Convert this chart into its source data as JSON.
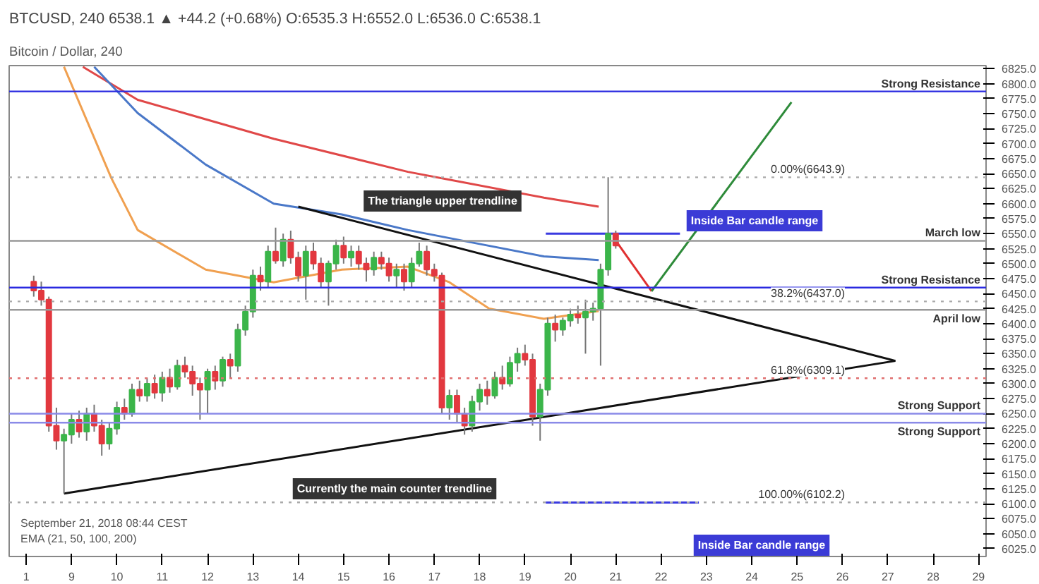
{
  "chart_data": {
    "type": "candlestick",
    "title": "BTCUSD, 240 6538.1 ▲ +44.2 (+0.68%) O:6535.3 H:6552.0 L:6536.0 C:6538.1",
    "subtitle": "Bitcoin / Dollar, 240",
    "x": [
      "2018-09-08T04:00",
      "2018-09-08T08:00",
      "2018-09-08T12:00",
      "2018-09-08T16:00",
      "2018-09-08T20:00",
      "2018-09-09T00:00",
      "2018-09-09T04:00",
      "2018-09-09T08:00",
      "2018-09-09T12:00",
      "2018-09-09T16:00",
      "2018-09-09T20:00",
      "2018-09-10T00:00",
      "2018-09-10T04:00",
      "2018-09-10T08:00",
      "2018-09-10T12:00",
      "2018-09-10T16:00",
      "2018-09-10T20:00",
      "2018-09-11T00:00",
      "2018-09-11T04:00",
      "2018-09-11T08:00",
      "2018-09-11T12:00",
      "2018-09-11T16:00",
      "2018-09-11T20:00",
      "2018-09-12T00:00",
      "2018-09-12T04:00",
      "2018-09-12T08:00",
      "2018-09-12T12:00",
      "2018-09-12T16:00",
      "2018-09-12T20:00",
      "2018-09-13T00:00",
      "2018-09-13T04:00",
      "2018-09-13T08:00",
      "2018-09-13T12:00",
      "2018-09-13T16:00",
      "2018-09-13T20:00",
      "2018-09-14T00:00",
      "2018-09-14T04:00",
      "2018-09-14T08:00",
      "2018-09-14T12:00",
      "2018-09-14T16:00",
      "2018-09-14T20:00",
      "2018-09-15T00:00",
      "2018-09-15T04:00",
      "2018-09-15T08:00",
      "2018-09-15T12:00",
      "2018-09-15T16:00",
      "2018-09-15T20:00",
      "2018-09-16T00:00",
      "2018-09-16T04:00",
      "2018-09-16T08:00",
      "2018-09-16T12:00",
      "2018-09-16T16:00",
      "2018-09-16T20:00",
      "2018-09-17T00:00",
      "2018-09-17T04:00",
      "2018-09-17T08:00",
      "2018-09-17T12:00",
      "2018-09-17T16:00",
      "2018-09-17T20:00",
      "2018-09-18T00:00",
      "2018-09-18T04:00",
      "2018-09-18T08:00",
      "2018-09-18T12:00",
      "2018-09-18T16:00",
      "2018-09-18T20:00",
      "2018-09-19T00:00",
      "2018-09-19T04:00",
      "2018-09-19T08:00",
      "2018-09-19T12:00",
      "2018-09-19T16:00",
      "2018-09-19T20:00",
      "2018-09-20T00:00",
      "2018-09-20T04:00",
      "2018-09-20T08:00",
      "2018-09-20T12:00",
      "2018-09-20T16:00",
      "2018-09-20T20:00",
      "2018-09-21T00:00"
    ],
    "ohlc": [
      [
        6470,
        6480,
        6445,
        6455
      ],
      [
        6455,
        6470,
        6430,
        6440
      ],
      [
        6440,
        6445,
        6220,
        6230
      ],
      [
        6230,
        6260,
        6190,
        6205
      ],
      [
        6205,
        6225,
        6117,
        6215
      ],
      [
        6215,
        6250,
        6200,
        6240
      ],
      [
        6240,
        6255,
        6210,
        6220
      ],
      [
        6220,
        6260,
        6205,
        6250
      ],
      [
        6250,
        6265,
        6220,
        6230
      ],
      [
        6230,
        6240,
        6180,
        6200
      ],
      [
        6200,
        6235,
        6190,
        6225
      ],
      [
        6225,
        6270,
        6215,
        6260
      ],
      [
        6260,
        6275,
        6240,
        6250
      ],
      [
        6250,
        6300,
        6245,
        6290
      ],
      [
        6290,
        6305,
        6270,
        6280
      ],
      [
        6280,
        6310,
        6270,
        6300
      ],
      [
        6300,
        6315,
        6275,
        6285
      ],
      [
        6285,
        6320,
        6270,
        6310
      ],
      [
        6310,
        6325,
        6285,
        6295
      ],
      [
        6295,
        6340,
        6290,
        6330
      ],
      [
        6330,
        6345,
        6310,
        6320
      ],
      [
        6320,
        6330,
        6280,
        6300
      ],
      [
        6300,
        6310,
        6240,
        6290
      ],
      [
        6290,
        6325,
        6250,
        6320
      ],
      [
        6320,
        6330,
        6290,
        6305
      ],
      [
        6305,
        6345,
        6295,
        6340
      ],
      [
        6340,
        6350,
        6310,
        6330
      ],
      [
        6330,
        6400,
        6320,
        6390
      ],
      [
        6390,
        6430,
        6380,
        6420
      ],
      [
        6420,
        6490,
        6410,
        6480
      ],
      [
        6480,
        6495,
        6455,
        6470
      ],
      [
        6470,
        6530,
        6460,
        6520
      ],
      [
        6520,
        6560,
        6500,
        6505
      ],
      [
        6505,
        6550,
        6495,
        6540
      ],
      [
        6540,
        6555,
        6500,
        6510
      ],
      [
        6510,
        6520,
        6470,
        6480
      ],
      [
        6480,
        6530,
        6440,
        6520
      ],
      [
        6520,
        6535,
        6490,
        6500
      ],
      [
        6500,
        6510,
        6460,
        6470
      ],
      [
        6470,
        6505,
        6430,
        6500
      ],
      [
        6500,
        6540,
        6490,
        6530
      ],
      [
        6530,
        6545,
        6500,
        6510
      ],
      [
        6510,
        6530,
        6495,
        6520
      ],
      [
        6520,
        6530,
        6490,
        6500
      ],
      [
        6500,
        6510,
        6470,
        6490
      ],
      [
        6490,
        6520,
        6480,
        6510
      ],
      [
        6510,
        6520,
        6490,
        6500
      ],
      [
        6500,
        6510,
        6470,
        6480
      ],
      [
        6480,
        6500,
        6460,
        6490
      ],
      [
        6490,
        6500,
        6455,
        6470
      ],
      [
        6470,
        6510,
        6460,
        6500
      ],
      [
        6500,
        6535,
        6495,
        6520
      ],
      [
        6520,
        6530,
        6480,
        6490
      ],
      [
        6490,
        6500,
        6470,
        6480
      ],
      [
        6480,
        6485,
        6250,
        6260
      ],
      [
        6260,
        6290,
        6240,
        6280
      ],
      [
        6280,
        6290,
        6235,
        6250
      ],
      [
        6250,
        6260,
        6215,
        6230
      ],
      [
        6230,
        6280,
        6220,
        6270
      ],
      [
        6270,
        6300,
        6255,
        6290
      ],
      [
        6290,
        6305,
        6265,
        6280
      ],
      [
        6280,
        6320,
        6275,
        6310
      ],
      [
        6310,
        6330,
        6290,
        6300
      ],
      [
        6300,
        6345,
        6295,
        6335
      ],
      [
        6335,
        6360,
        6320,
        6350
      ],
      [
        6350,
        6365,
        6330,
        6340
      ],
      [
        6340,
        6350,
        6230,
        6245
      ],
      [
        6245,
        6300,
        6205,
        6290
      ],
      [
        6290,
        6410,
        6280,
        6400
      ],
      [
        6400,
        6415,
        6370,
        6390
      ],
      [
        6390,
        6410,
        6380,
        6405
      ],
      [
        6405,
        6425,
        6395,
        6415
      ],
      [
        6415,
        6430,
        6400,
        6410
      ],
      [
        6410,
        6440,
        6350,
        6420
      ],
      [
        6420,
        6435,
        6405,
        6425
      ],
      [
        6425,
        6500,
        6330,
        6490
      ],
      [
        6490,
        6644,
        6480,
        6550
      ],
      [
        6550,
        6555,
        6525,
        6530
      ]
    ],
    "colors": [
      "#e2383f",
      "#e2383f",
      "#e2383f",
      "#e2383f",
      "#3bb54a",
      "#3bb54a",
      "#e2383f",
      "#3bb54a",
      "#e2383f",
      "#e2383f",
      "#3bb54a",
      "#3bb54a",
      "#e2383f",
      "#3bb54a",
      "#e2383f",
      "#3bb54a",
      "#e2383f",
      "#3bb54a",
      "#e2383f",
      "#3bb54a",
      "#e2383f",
      "#e2383f",
      "#e2383f",
      "#3bb54a",
      "#e2383f",
      "#3bb54a",
      "#e2383f",
      "#3bb54a",
      "#3bb54a",
      "#3bb54a",
      "#e2383f",
      "#3bb54a",
      "#e2383f",
      "#3bb54a",
      "#e2383f",
      "#e2383f",
      "#3bb54a",
      "#e2383f",
      "#e2383f",
      "#3bb54a",
      "#3bb54a",
      "#e2383f",
      "#3bb54a",
      "#e2383f",
      "#e2383f",
      "#3bb54a",
      "#e2383f",
      "#e2383f",
      "#3bb54a",
      "#e2383f",
      "#3bb54a",
      "#3bb54a",
      "#e2383f",
      "#e2383f",
      "#e2383f",
      "#3bb54a",
      "#e2383f",
      "#e2383f",
      "#3bb54a",
      "#3bb54a",
      "#e2383f",
      "#3bb54a",
      "#e2383f",
      "#3bb54a",
      "#3bb54a",
      "#e2383f",
      "#e2383f",
      "#3bb54a",
      "#3bb54a",
      "#e2383f",
      "#3bb54a",
      "#3bb54a",
      "#e2383f",
      "#3bb54a",
      "#3bb54a",
      "#3bb54a",
      "#3bb54a",
      "#e2383f"
    ],
    "series": [
      {
        "type": "line",
        "color": "#e04848",
        "x": [
          "2018-09-09T06:00",
          "2018-09-10T11:00",
          "2018-09-13T11:00",
          "2018-09-16T10:00",
          "2018-09-19T10:00",
          "2018-09-20T15:00"
        ],
        "values": [
          6828,
          6773,
          6708,
          6653,
          6610,
          6595
        ]
      },
      {
        "type": "line",
        "color": "#4a78c8",
        "x": [
          "2018-09-09T12:00",
          "2018-09-10T11:00",
          "2018-09-11T23:00",
          "2018-09-13T11:00",
          "2018-09-14T23:00",
          "2018-09-16T10:00",
          "2018-09-17T22:00",
          "2018-09-19T10:00",
          "2018-09-20T15:00"
        ],
        "values": [
          6828,
          6751,
          6665,
          6600,
          6582,
          6556,
          6534,
          6512,
          6506
        ]
      },
      {
        "type": "line",
        "color": "#f0a050",
        "x": [
          "2018-09-08T20:00",
          "2018-09-09T21:00",
          "2018-09-10T11:00",
          "2018-09-11T23:00",
          "2018-09-13T11:00",
          "2018-09-14T23:00",
          "2018-09-16T10:00",
          "2018-09-17T08:00",
          "2018-09-18T05:00",
          "2018-09-19T10:00",
          "2018-09-20T15:00"
        ],
        "values": [
          6828,
          6643,
          6556,
          6490,
          6469,
          6490,
          6495,
          6469,
          6425,
          6408,
          6421
        ]
      },
      {
        "type": "line",
        "color": "#111111",
        "x": [
          "2018-09-14T00:00",
          "2018-09-27T04:00"
        ],
        "values": [
          6595,
          6338
        ]
      },
      {
        "type": "line",
        "color": "#111111",
        "x": [
          "2018-09-08T20:00",
          "2018-09-27T04:00"
        ],
        "values": [
          6117,
          6338
        ]
      },
      {
        "type": "line",
        "color": "#e03030",
        "x": [
          "2018-09-21T01:00",
          "2018-09-21T19:00"
        ],
        "values": [
          6534,
          6454
        ]
      },
      {
        "type": "line",
        "color": "#2e8b3a",
        "x": [
          "2018-09-21T19:00",
          "2018-09-24T21:00"
        ],
        "values": [
          6454,
          6769
        ]
      },
      {
        "type": "line",
        "color": "#3a3ae0",
        "x": [
          "2018-09-19T11:00",
          "2018-09-22T10:00"
        ],
        "values": [
          6550,
          6550
        ]
      },
      {
        "type": "line",
        "color": "#3a3ae0",
        "x": [
          "2018-09-19T11:00",
          "2018-09-22T20:00"
        ],
        "values": [
          6102,
          6102
        ]
      }
    ],
    "ref_lines": [
      {
        "axis": "y",
        "value": 6787,
        "label": "Strong Resistance",
        "color": "#2a2ae0",
        "line_style": "solid"
      },
      {
        "axis": "y",
        "value": 6538,
        "label": "March low",
        "color": "#999999",
        "line_style": "solid"
      },
      {
        "axis": "y",
        "value": 6460,
        "label": "Strong Resistance",
        "color": "#2a2ae0",
        "line_style": "solid"
      },
      {
        "axis": "y",
        "value": 6423,
        "label": "April low",
        "color": "#999999",
        "line_style": "solid"
      },
      {
        "axis": "y",
        "value": 6250,
        "label": "Strong Support",
        "color": "#8a8ae8",
        "line_style": "solid"
      },
      {
        "axis": "y",
        "value": 6235,
        "label": "Strong Support",
        "color": "#8a8ae8",
        "line_style": "solid"
      },
      {
        "axis": "y",
        "value": 6643.9,
        "label": "0.00%(6643.9)",
        "color": "#aaaaaa",
        "line_style": "dotted"
      },
      {
        "axis": "y",
        "value": 6437.0,
        "label": "38.2%(6437.0)",
        "color": "#aaaaaa",
        "line_style": "dotted"
      },
      {
        "axis": "y",
        "value": 6309.1,
        "label": "61.8%(6309.1)",
        "color": "#e07070",
        "line_style": "dotted"
      },
      {
        "axis": "y",
        "value": 6102.2,
        "label": "100.00%(6102.2)",
        "color": "#aaaaaa",
        "line_style": "dotted"
      }
    ],
    "annotations": [
      "September 21, 2018 08:44 CEST",
      "EMA (21, 50, 100, 200)",
      "The triangle upper trendline",
      "Currently the main counter trendline",
      "Inside Bar candle range",
      "Inside Bar candle range"
    ],
    "xlim": [
      "2018-09-07T15:00",
      "2018-09-29T04:00"
    ],
    "xticks": [
      {
        "value": "2018-09-08",
        "label": "1"
      },
      {
        "value": "2018-09-09",
        "label": "9"
      },
      {
        "value": "2018-09-10",
        "label": "10"
      },
      {
        "value": "2018-09-11",
        "label": "11"
      },
      {
        "value": "2018-09-12",
        "label": "12"
      },
      {
        "value": "2018-09-13",
        "label": "13"
      },
      {
        "value": "2018-09-14",
        "label": "14"
      },
      {
        "value": "2018-09-15",
        "label": "15"
      },
      {
        "value": "2018-09-16",
        "label": "16"
      },
      {
        "value": "2018-09-17",
        "label": "17"
      },
      {
        "value": "2018-09-18",
        "label": "18"
      },
      {
        "value": "2018-09-19",
        "label": "19"
      },
      {
        "value": "2018-09-20",
        "label": "20"
      },
      {
        "value": "2018-09-21",
        "label": "21"
      },
      {
        "value": "2018-09-22",
        "label": "22"
      },
      {
        "value": "2018-09-23",
        "label": "23"
      },
      {
        "value": "2018-09-24",
        "label": "24"
      },
      {
        "value": "2018-09-25",
        "label": "25"
      },
      {
        "value": "2018-09-26",
        "label": "26"
      },
      {
        "value": "2018-09-27",
        "label": "27"
      },
      {
        "value": "2018-09-28",
        "label": "28"
      },
      {
        "value": "2018-09-29",
        "label": "29"
      }
    ],
    "ylim": [
      6012,
      6830
    ],
    "yticks": [
      {
        "value": 6025,
        "label": "6025.0"
      },
      {
        "value": 6050,
        "label": "6050.0"
      },
      {
        "value": 6075,
        "label": "6075.0"
      },
      {
        "value": 6100,
        "label": "6100.0"
      },
      {
        "value": 6125,
        "label": "6125.0"
      },
      {
        "value": 6150,
        "label": "6150.0"
      },
      {
        "value": 6175,
        "label": "6175.0"
      },
      {
        "value": 6200,
        "label": "6200.0"
      },
      {
        "value": 6225,
        "label": "6225.0"
      },
      {
        "value": 6250,
        "label": "6250.0"
      },
      {
        "value": 6275,
        "label": "6275.0"
      },
      {
        "value": 6300,
        "label": "6300.0"
      },
      {
        "value": 6325,
        "label": "6325.0"
      },
      {
        "value": 6350,
        "label": "6350.0"
      },
      {
        "value": 6375,
        "label": "6375.0"
      },
      {
        "value": 6400,
        "label": "6400.0"
      },
      {
        "value": 6425,
        "label": "6425.0"
      },
      {
        "value": 6450,
        "label": "6450.0"
      },
      {
        "value": 6475,
        "label": "6475.0"
      },
      {
        "value": 6500,
        "label": "6500.0"
      },
      {
        "value": 6525,
        "label": "6525.0"
      },
      {
        "value": 6550,
        "label": "6550.0"
      },
      {
        "value": 6575,
        "label": "6575.0"
      },
      {
        "value": 6600,
        "label": "6600.0"
      },
      {
        "value": 6625,
        "label": "6625.0"
      },
      {
        "value": 6650,
        "label": "6650.0"
      },
      {
        "value": 6675,
        "label": "6675.0"
      },
      {
        "value": 6700,
        "label": "6700.0"
      },
      {
        "value": 6725,
        "label": "6725.0"
      },
      {
        "value": 6750,
        "label": "6750.0"
      },
      {
        "value": 6775,
        "label": "6775.0"
      },
      {
        "value": 6800,
        "label": "6800.0"
      },
      {
        "value": 6825,
        "label": "6825.0"
      }
    ],
    "grid": false
  }
}
